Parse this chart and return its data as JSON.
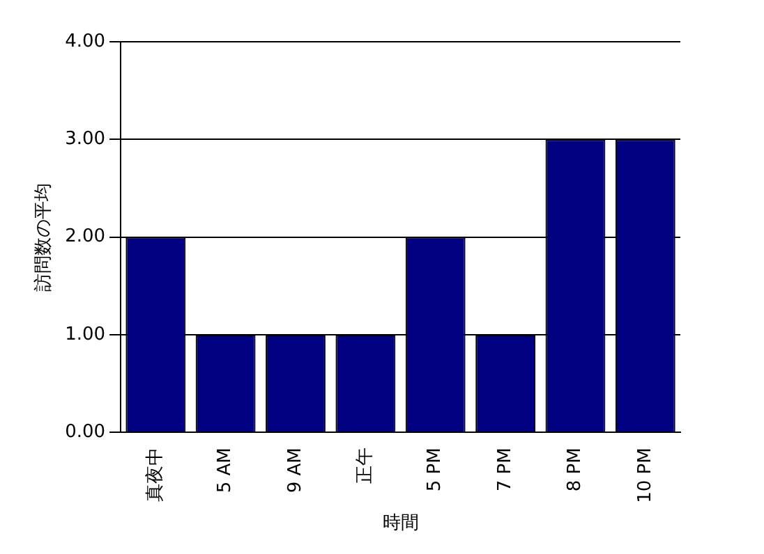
{
  "chart_data": {
    "type": "bar",
    "xlabel": "時間",
    "ylabel": "訪問数の平均",
    "categories": [
      "真夜中",
      "5 AM",
      "9 AM",
      "正午",
      "5 PM",
      "7 PM",
      "8 PM",
      "10 PM"
    ],
    "values": [
      2,
      1,
      1,
      1,
      2,
      1,
      3,
      3
    ],
    "color": "#000080",
    "ylim": [
      0,
      4
    ],
    "yticks": [
      {
        "value": 0,
        "label": "0.00"
      },
      {
        "value": 1,
        "label": "1.00"
      },
      {
        "value": 2,
        "label": "2.00"
      },
      {
        "value": 3,
        "label": "3.00"
      },
      {
        "value": 4,
        "label": "4.00"
      }
    ],
    "grid": "y",
    "legend": false
  }
}
